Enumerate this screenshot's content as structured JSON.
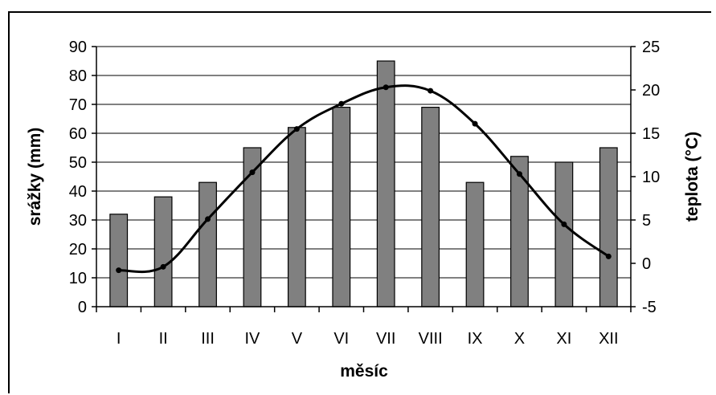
{
  "chart_data": {
    "type": "bar+line",
    "categories": [
      "I",
      "II",
      "III",
      "IV",
      "V",
      "VI",
      "VII",
      "VIII",
      "IX",
      "X",
      "XI",
      "XII"
    ],
    "series": [
      {
        "type": "bar",
        "axis": "left",
        "values": [
          32,
          38,
          43,
          55,
          62,
          69,
          85,
          69,
          43,
          52,
          50,
          55
        ],
        "color": "#808080"
      },
      {
        "type": "line",
        "axis": "right",
        "values": [
          -0.8,
          -0.4,
          5.1,
          10.5,
          15.5,
          18.4,
          20.3,
          19.9,
          16.1,
          10.3,
          4.5,
          0.8
        ],
        "color": "#000000"
      }
    ],
    "xlabel": "měsíc",
    "ylabel_left": "srážky (mm)",
    "ylabel_right": "teplota (°C)",
    "ylim_left": [
      0,
      90
    ],
    "yticks_left": [
      "0",
      "10",
      "20",
      "30",
      "40",
      "50",
      "60",
      "70",
      "80",
      "90"
    ],
    "ylim_right": [
      -5,
      25
    ],
    "yticks_right": [
      "-5",
      "0",
      "5",
      "10",
      "15",
      "20",
      "25"
    ],
    "grid": "horizontal",
    "legend": "none"
  }
}
